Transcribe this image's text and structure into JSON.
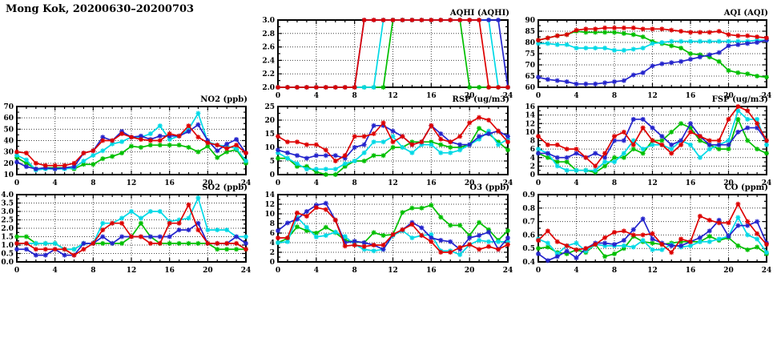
{
  "page_title": "Mong Kok, 20200630–20200703",
  "series_colors": {
    "red": "#dd0000",
    "green": "#00bf00",
    "cyan": "#00d9e6",
    "blue": "#2424cc"
  },
  "x_axis": {
    "min": 0,
    "max": 24,
    "tick_labels": [
      "0",
      "4",
      "8",
      "12",
      "16",
      "20",
      "24"
    ],
    "minor_every": 1,
    "grid": "dotted"
  },
  "chart_data": [
    {
      "id": "aqhi",
      "title": "AQHI (AQHI)",
      "type": "line",
      "row": 0,
      "col": 1,
      "ylim": [
        2.0,
        3.0
      ],
      "ystep": 0.2,
      "ytick_labels": [
        "2.0",
        "2.2",
        "2.4",
        "2.6",
        "2.8",
        "3.0"
      ],
      "series": [
        {
          "color": "green",
          "values": [
            2,
            2,
            2,
            2,
            2,
            2,
            2,
            2,
            2,
            2,
            2,
            2,
            3,
            3,
            3,
            3,
            3,
            3,
            3,
            3,
            2,
            2,
            2,
            2,
            2
          ]
        },
        {
          "color": "cyan",
          "values": [
            2,
            2,
            2,
            2,
            2,
            2,
            2,
            2,
            2,
            2,
            2,
            3,
            3,
            3,
            3,
            3,
            3,
            3,
            3,
            3,
            3,
            3,
            3,
            2,
            2
          ]
        },
        {
          "color": "blue",
          "values": [
            2,
            2,
            2,
            2,
            2,
            2,
            2,
            2,
            2,
            3,
            3,
            3,
            3,
            3,
            3,
            3,
            3,
            3,
            3,
            3,
            3,
            3,
            3,
            3,
            2
          ]
        },
        {
          "color": "red",
          "values": [
            2,
            2,
            2,
            2,
            2,
            2,
            2,
            2,
            2,
            3,
            3,
            3,
            3,
            3,
            3,
            3,
            3,
            3,
            3,
            3,
            3,
            3,
            2,
            2,
            2
          ]
        }
      ]
    },
    {
      "id": "aqi",
      "title": "AQI (AQI)",
      "type": "line",
      "row": 0,
      "col": 2,
      "ylim": [
        60,
        90
      ],
      "ystep": 5,
      "ytick_labels": [
        "60",
        "65",
        "70",
        "75",
        "80",
        "85",
        "90"
      ],
      "series": [
        {
          "color": "green",
          "values": [
            81,
            82,
            83,
            83.5,
            85,
            84.5,
            84.5,
            84.5,
            84.5,
            84,
            83.5,
            82.5,
            80.5,
            79.5,
            78.5,
            77.5,
            75,
            74.5,
            73.5,
            71.5,
            67.5,
            66.5,
            66,
            65,
            64.5
          ]
        },
        {
          "color": "cyan",
          "values": [
            79.5,
            79.5,
            79,
            79,
            77.5,
            77.5,
            77.5,
            77.5,
            76.5,
            76.5,
            77,
            77.5,
            79.5,
            80,
            80.5,
            80.5,
            80.5,
            80.5,
            80.5,
            80.5,
            80.5,
            80.5,
            80.5,
            81,
            81
          ]
        },
        {
          "color": "blue",
          "values": [
            64.5,
            63.5,
            63,
            62.5,
            61.5,
            61.5,
            61.5,
            62,
            62.5,
            63,
            65.5,
            66.5,
            69.5,
            70.5,
            71,
            71.5,
            72.5,
            73.5,
            74.5,
            75.5,
            78.5,
            79,
            79.5,
            80,
            81
          ]
        },
        {
          "color": "red",
          "values": [
            81,
            82,
            83,
            83.5,
            85.5,
            86,
            86,
            86.5,
            86.5,
            86.5,
            86.5,
            86,
            86,
            86,
            85.5,
            85,
            84.5,
            84.5,
            84.5,
            85,
            83.5,
            83,
            83,
            82.5,
            82
          ]
        }
      ]
    },
    {
      "id": "no2",
      "title": "NO2 (ppb)",
      "type": "line",
      "row": 1,
      "col": 0,
      "ylim": [
        10,
        70
      ],
      "ystep": 10,
      "ytick_labels": [
        "10",
        "20",
        "30",
        "40",
        "50",
        "60",
        "70"
      ],
      "series": [
        {
          "color": "green",
          "values": [
            25,
            20,
            15,
            16,
            16,
            16,
            15,
            19,
            19,
            24,
            26,
            29,
            35,
            34,
            36,
            36,
            36,
            36,
            34,
            30,
            35,
            25,
            30,
            32,
            20
          ]
        },
        {
          "color": "cyan",
          "values": [
            27,
            23,
            14,
            15,
            15,
            15,
            16,
            22,
            27,
            31,
            37,
            39,
            43,
            43,
            46,
            53,
            41,
            44,
            50,
            64,
            39,
            36,
            35,
            33,
            22
          ]
        },
        {
          "color": "blue",
          "values": [
            21,
            17,
            15,
            16,
            15,
            16,
            17,
            29,
            31,
            43,
            40,
            48,
            43,
            44,
            41,
            44,
            44,
            44,
            48,
            54,
            40,
            31,
            37,
            41,
            29
          ]
        },
        {
          "color": "red",
          "values": [
            30,
            29,
            20,
            18,
            18,
            18,
            20,
            29,
            31,
            40,
            40,
            46,
            43,
            41,
            40,
            40,
            46,
            44,
            53,
            43,
            38,
            36,
            33,
            36,
            29
          ]
        }
      ]
    },
    {
      "id": "rsp",
      "title": "RSP (ug/m3)",
      "type": "line",
      "row": 1,
      "col": 1,
      "ylim": [
        0,
        25
      ],
      "ystep": 5,
      "ytick_labels": [
        "0",
        "5",
        "10",
        "15",
        "20",
        "25"
      ],
      "series": [
        {
          "color": "green",
          "values": [
            6,
            6,
            3,
            3,
            1,
            0,
            0,
            3,
            5,
            5,
            7,
            7,
            10,
            10,
            12,
            12,
            12,
            11,
            10,
            10,
            11,
            17,
            15,
            12,
            9
          ]
        },
        {
          "color": "cyan",
          "values": [
            8,
            6,
            4,
            2,
            2,
            2,
            2,
            4,
            5,
            8,
            12,
            12,
            14,
            10,
            8,
            11,
            11,
            8,
            8,
            9,
            11,
            13,
            16,
            11,
            13
          ]
        },
        {
          "color": "blue",
          "values": [
            9,
            8,
            7,
            6,
            7,
            7,
            7,
            6,
            10,
            11,
            18,
            18,
            16,
            14,
            11,
            12,
            18,
            15,
            12,
            11,
            11,
            14,
            15,
            16,
            14
          ]
        },
        {
          "color": "red",
          "values": [
            14,
            12,
            12,
            11,
            11,
            9,
            5,
            7,
            14,
            14,
            15,
            19,
            12,
            14,
            11,
            12,
            18,
            13,
            12,
            14,
            19,
            21,
            20,
            16,
            12
          ]
        }
      ]
    },
    {
      "id": "fsp",
      "title": "FSP (ug/m3)",
      "type": "line",
      "row": 1,
      "col": 2,
      "ylim": [
        0,
        16
      ],
      "ystep": 2,
      "ytick_labels": [
        "0",
        "2",
        "4",
        "6",
        "8",
        "10",
        "12",
        "14",
        "16"
      ],
      "series": [
        {
          "color": "green",
          "values": [
            5,
            4,
            3,
            3,
            1,
            1,
            0.5,
            2,
            4,
            4,
            6,
            5,
            8,
            8,
            10,
            12,
            11,
            8,
            7,
            6,
            6,
            13,
            8,
            6,
            5
          ]
        },
        {
          "color": "cyan",
          "values": [
            6,
            5,
            2,
            1,
            1,
            1,
            1,
            3,
            3,
            5,
            8,
            6,
            7,
            7,
            6,
            8,
            7,
            4,
            6,
            7,
            8,
            15,
            13,
            13,
            7
          ]
        },
        {
          "color": "blue",
          "values": [
            5,
            5,
            4,
            4,
            5,
            4,
            5,
            4,
            8,
            8,
            13,
            13,
            11,
            9,
            7,
            8,
            12,
            9,
            7,
            7,
            7,
            10,
            11,
            11,
            8
          ]
        },
        {
          "color": "red",
          "values": [
            9,
            7,
            7,
            6,
            6,
            4,
            2,
            5,
            9,
            10,
            7,
            11,
            8,
            7,
            5,
            7,
            10,
            9,
            8,
            8,
            13,
            16,
            15,
            12,
            8
          ]
        }
      ]
    },
    {
      "id": "so2",
      "title": "SO2 (ppb)",
      "type": "line",
      "row": 2,
      "col": 0,
      "ylim": [
        0.0,
        4.0
      ],
      "ystep": 0.5,
      "ytick_labels": [
        "0.0",
        "0.5",
        "1.0",
        "1.5",
        "2.0",
        "2.5",
        "3.0",
        "3.5",
        "4.0"
      ],
      "series": [
        {
          "color": "green",
          "values": [
            1.5,
            1.5,
            1.1,
            1.1,
            1.1,
            0.75,
            0.75,
            1.1,
            1.1,
            1.1,
            1.1,
            1.1,
            1.5,
            2.3,
            1.5,
            1.1,
            1.1,
            1.1,
            1.1,
            1.1,
            1.1,
            0.75,
            0.75,
            0.75,
            0.75
          ]
        },
        {
          "color": "cyan",
          "values": [
            1.1,
            1.1,
            1.1,
            1.1,
            1.1,
            0.75,
            0.75,
            1.1,
            1.1,
            2.3,
            2.3,
            2.6,
            3.0,
            2.6,
            3.0,
            3.0,
            2.4,
            2.5,
            2.6,
            3.8,
            1.9,
            1.9,
            1.9,
            1.5,
            1.5
          ]
        },
        {
          "color": "blue",
          "values": [
            0.75,
            0.75,
            0.4,
            0.4,
            0.75,
            0.4,
            0.4,
            1.1,
            1.1,
            1.5,
            1.1,
            1.5,
            1.5,
            1.5,
            1.5,
            1.5,
            1.5,
            1.9,
            1.9,
            2.3,
            1.1,
            1.1,
            1.1,
            1.5,
            1.1
          ]
        },
        {
          "color": "red",
          "values": [
            1.1,
            1.1,
            0.75,
            0.75,
            0.75,
            0.75,
            0.4,
            0.75,
            1.1,
            1.9,
            2.3,
            2.3,
            1.5,
            1.5,
            1.1,
            1.1,
            2.3,
            2.3,
            3.4,
            1.9,
            1.1,
            1.1,
            1.1,
            1.1,
            0.75
          ]
        }
      ]
    },
    {
      "id": "o3",
      "title": "O3 (ppb)",
      "type": "line",
      "row": 2,
      "col": 1,
      "ylim": [
        0,
        14
      ],
      "ystep": 2,
      "ytick_labels": [
        "0",
        "2",
        "4",
        "6",
        "8",
        "10",
        "12",
        "14"
      ],
      "series": [
        {
          "color": "green",
          "values": [
            4,
            4.9,
            7.3,
            6.5,
            6,
            7.2,
            6.1,
            4.5,
            4.2,
            4,
            6.1,
            5.5,
            5.7,
            10.3,
            11.2,
            11.2,
            11.8,
            9.3,
            7.6,
            7.6,
            5.5,
            8.2,
            6.7,
            4.5,
            6.5
          ]
        },
        {
          "color": "cyan",
          "values": [
            4,
            4.2,
            9.3,
            7.2,
            5.2,
            5.5,
            6.2,
            5.3,
            3.6,
            2.6,
            2.3,
            2.6,
            5.5,
            6.5,
            5,
            5.5,
            5.7,
            2.3,
            2.3,
            1.5,
            3.6,
            4.5,
            4.2,
            4.2,
            4.2
          ]
        },
        {
          "color": "blue",
          "values": [
            6.5,
            8.1,
            8.9,
            10.5,
            11.8,
            12.2,
            8.7,
            4,
            4.3,
            4,
            3.5,
            2.6,
            5.7,
            6.7,
            8.2,
            7.1,
            5,
            4.5,
            4.2,
            2.6,
            5,
            5.5,
            6.2,
            2.6,
            5
          ]
        },
        {
          "color": "red",
          "values": [
            5,
            5,
            10.2,
            9.5,
            11.3,
            10.9,
            8.7,
            3.3,
            3.5,
            3.2,
            3.5,
            3.5,
            5.7,
            6.7,
            7.8,
            5.5,
            4.2,
            2,
            2,
            3,
            3.6,
            2.6,
            3.2,
            2.6,
            3.6
          ]
        }
      ]
    },
    {
      "id": "co",
      "title": "CO (ppm)",
      "type": "line",
      "row": 2,
      "col": 2,
      "ylim": [
        0.4,
        0.9
      ],
      "ystep": 0.1,
      "ytick_labels": [
        "0.4",
        "0.5",
        "0.6",
        "0.7",
        "0.8",
        "0.9"
      ],
      "series": [
        {
          "color": "green",
          "values": [
            0.5,
            0.51,
            0.47,
            0.46,
            0.49,
            0.47,
            0.53,
            0.44,
            0.46,
            0.5,
            0.59,
            0.55,
            0.54,
            0.53,
            0.54,
            0.55,
            0.55,
            0.55,
            0.59,
            0.56,
            0.58,
            0.52,
            0.49,
            0.51,
            0.46
          ]
        },
        {
          "color": "cyan",
          "values": [
            0.57,
            0.54,
            0.46,
            0.52,
            0.54,
            0.48,
            0.53,
            0.52,
            0.52,
            0.52,
            0.51,
            0.56,
            0.49,
            0.49,
            0.53,
            0.51,
            0.52,
            0.55,
            0.55,
            0.57,
            0.59,
            0.73,
            0.6,
            0.57,
            0.47
          ]
        },
        {
          "color": "blue",
          "values": [
            0.46,
            0.41,
            0.44,
            0.48,
            0.43,
            0.5,
            0.54,
            0.54,
            0.53,
            0.56,
            0.64,
            0.72,
            0.57,
            0.54,
            0.52,
            0.52,
            0.55,
            0.58,
            0.63,
            0.71,
            0.59,
            0.67,
            0.67,
            0.7,
            0.54
          ]
        },
        {
          "color": "red",
          "values": [
            0.56,
            0.63,
            0.55,
            0.52,
            0.49,
            0.5,
            0.53,
            0.58,
            0.62,
            0.63,
            0.6,
            0.6,
            0.61,
            0.53,
            0.47,
            0.57,
            0.55,
            0.74,
            0.71,
            0.69,
            0.69,
            0.83,
            0.7,
            0.61,
            0.53
          ]
        }
      ]
    }
  ]
}
